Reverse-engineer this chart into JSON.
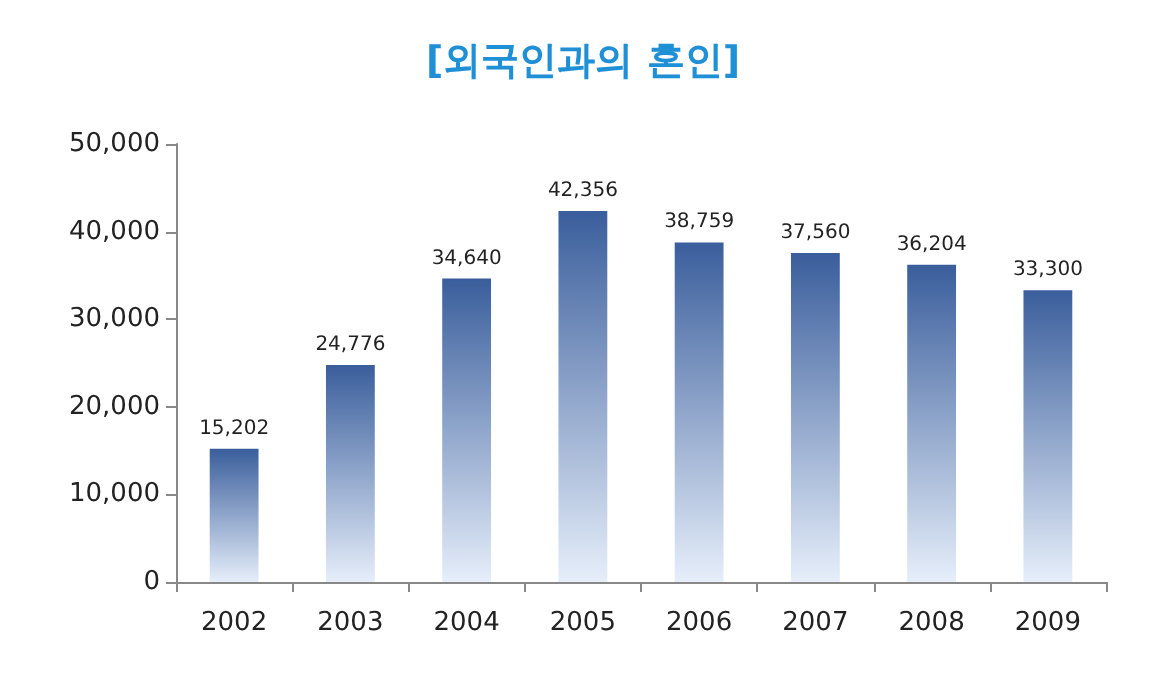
{
  "chart_data": {
    "type": "bar",
    "title": "[외국인과의 혼인]",
    "categories": [
      "2002",
      "2003",
      "2004",
      "2005",
      "2006",
      "2007",
      "2008",
      "2009"
    ],
    "values": [
      15202,
      24776,
      34640,
      42356,
      38759,
      37560,
      36204,
      33300
    ],
    "value_labels": [
      "15,202",
      "24,776",
      "34,640",
      "42,356",
      "38,759",
      "37,560",
      "36,204",
      "33,300"
    ],
    "color": "#3a5e9c",
    "ylim": [
      0,
      50000
    ],
    "yticks": [
      {
        "value": 0,
        "label": "0"
      },
      {
        "value": 10000,
        "label": "10,000"
      },
      {
        "value": 20000,
        "label": "20,000"
      },
      {
        "value": 30000,
        "label": "30,000"
      },
      {
        "value": 40000,
        "label": "40,000"
      },
      {
        "value": 50000,
        "label": "50,000"
      }
    ],
    "grid": false
  }
}
